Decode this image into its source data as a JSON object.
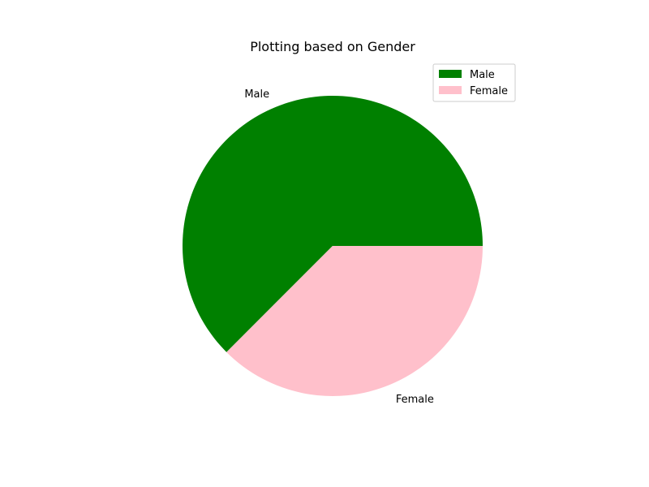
{
  "chart_data": {
    "type": "pie",
    "title": "Plotting based on Gender",
    "categories": [
      "Male",
      "Female"
    ],
    "values": [
      62.5,
      37.5
    ],
    "colors": [
      "#008000",
      "#ffc0cb"
    ],
    "start_angle_deg": 0,
    "direction": "counterclockwise",
    "legend": {
      "placement": "top-right",
      "entries": [
        "Male",
        "Female"
      ]
    }
  }
}
